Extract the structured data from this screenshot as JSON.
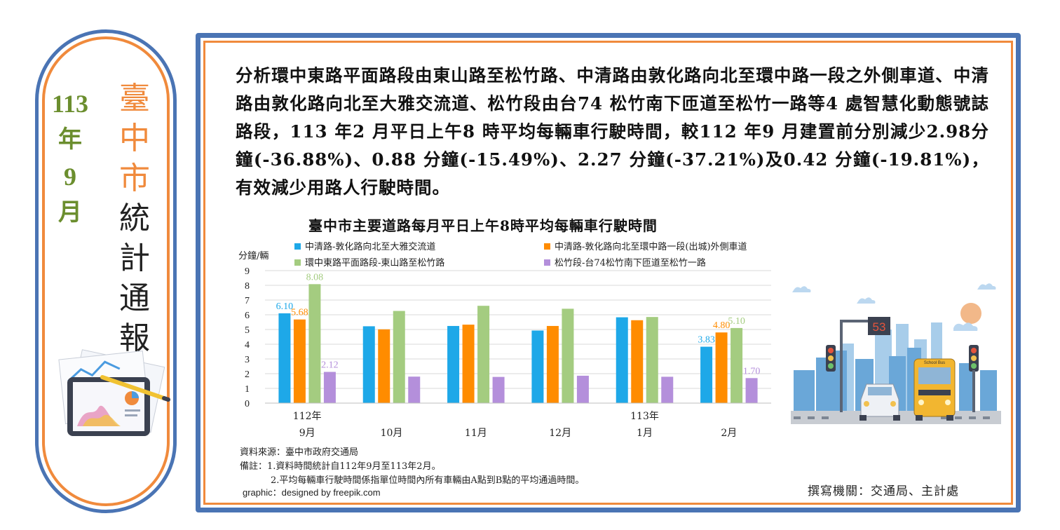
{
  "badge": {
    "year_number": "113",
    "year_char": "年",
    "month_number": "9",
    "month_char": "月",
    "title_orange": [
      "臺",
      "中",
      "市"
    ],
    "title_black": [
      "統",
      "計",
      "通",
      "報"
    ]
  },
  "paragraph": "分析環中東路平面路段由東山路至松竹路、中清路由敦化路向北至環中路一段之外側車道、中清路由敦化路向北至大雅交流道、松竹段由台74 松竹南下匝道至松竹一路等4 處智慧化動態號誌路段，113 年2 月平日上午8 時平均每輛車行駛時間，較112 年9 月建置前分別減少2.98分鐘(-36.88%)、0.88 分鐘(-15.49%)、2.27 分鐘(-37.21%)及0.42 分鐘(-19.81%)，有效減少用路人行駛時間。",
  "chart_data": {
    "type": "bar",
    "title": "臺中市主要道路每月平日上午8時平均每輛車行駛時間",
    "ylabel": "分鐘/輛",
    "ylim": [
      0,
      9
    ],
    "yticks": [
      "0",
      "1",
      "2",
      "3",
      "4",
      "5",
      "6",
      "7",
      "8",
      "9"
    ],
    "grid": true,
    "categories": [
      {
        "top": "112年",
        "bottom": "9月"
      },
      {
        "top": "",
        "bottom": "10月"
      },
      {
        "top": "",
        "bottom": "11月"
      },
      {
        "top": "",
        "bottom": "12月"
      },
      {
        "top": "113年",
        "bottom": "1月"
      },
      {
        "top": "",
        "bottom": "2月"
      }
    ],
    "series": [
      {
        "name": "中清路-敦化路向北至大雅交流道",
        "color": "#1ea8e8",
        "values": [
          6.1,
          5.22,
          5.24,
          4.93,
          5.83,
          3.83
        ]
      },
      {
        "name": "中清路-敦化路向北至環中路一段(出城)外側車道",
        "color": "#ff8c00",
        "values": [
          5.68,
          5.01,
          5.33,
          5.24,
          5.63,
          4.8
        ]
      },
      {
        "name": "環中東路平面路段-東山路至松竹路",
        "color": "#a4cc80",
        "values": [
          8.08,
          6.26,
          6.61,
          6.41,
          5.85,
          5.1
        ]
      },
      {
        "name": "松竹段-台74松竹南下匝道至松竹一路",
        "color": "#b48fdb",
        "values": [
          2.12,
          1.8,
          1.78,
          1.86,
          1.79,
          1.7
        ]
      }
    ],
    "data_labels": [
      {
        "category": 0,
        "series": 0,
        "text": "6.10"
      },
      {
        "category": 0,
        "series": 1,
        "text": "5.68"
      },
      {
        "category": 0,
        "series": 2,
        "text": "8.08"
      },
      {
        "category": 0,
        "series": 3,
        "text": "2.12"
      },
      {
        "category": 5,
        "series": 0,
        "text": "3.83"
      },
      {
        "category": 5,
        "series": 1,
        "text": "4.80"
      },
      {
        "category": 5,
        "series": 2,
        "text": "5.10"
      },
      {
        "category": 5,
        "series": 3,
        "text": "1.70"
      }
    ],
    "legend_position": "top"
  },
  "notes": {
    "source": "資料來源：臺中市政府交通局",
    "remark1": "備註：1.資料時間統計自112年9月至113年2月。",
    "remark2": "2.平均每輛車行駛時間係指單位時間內所有車輛由A點到B點的平均通過時間。"
  },
  "credit": "graphic：designed by freepik.com",
  "author": "撰寫機關：交通局、主計處",
  "illustration": {
    "signal_number": "53",
    "bus_label": "School Bus"
  }
}
